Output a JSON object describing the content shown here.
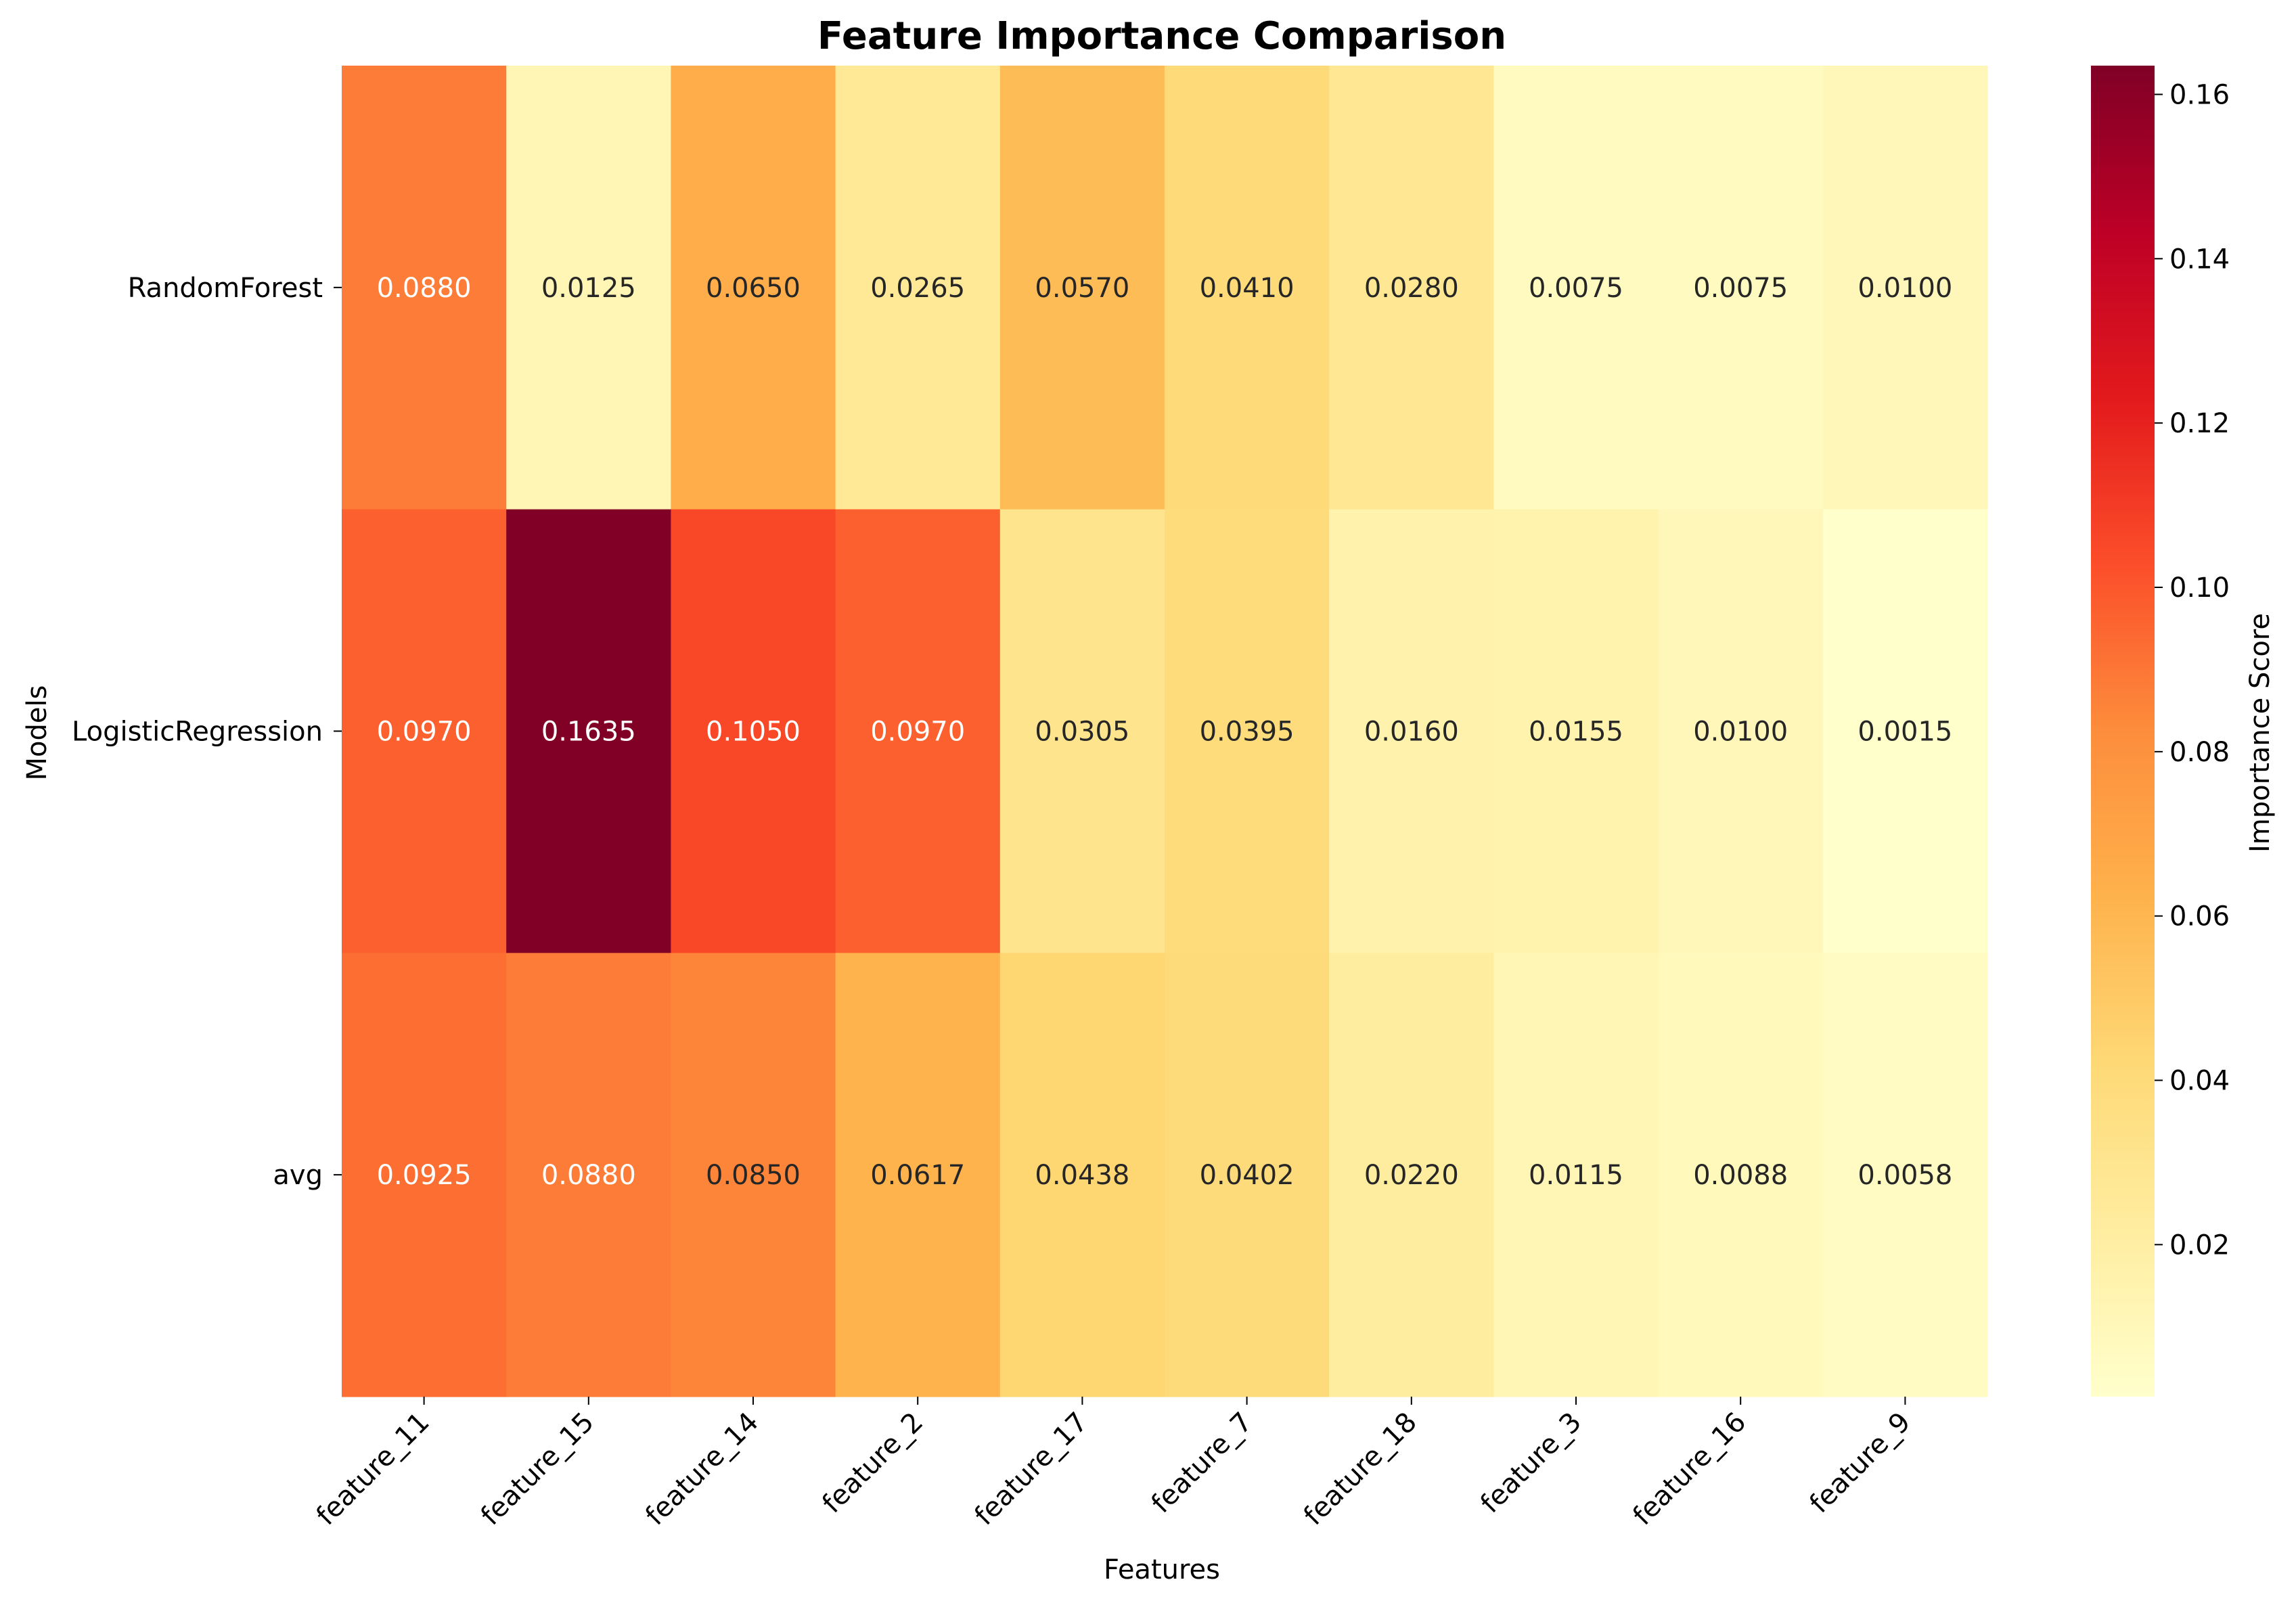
{
  "chart_data": {
    "type": "heatmap",
    "title": "Feature Importance Comparison",
    "xlabel": "Features",
    "ylabel": "Models",
    "x_categories": [
      "feature_11",
      "feature_15",
      "feature_14",
      "feature_2",
      "feature_17",
      "feature_7",
      "feature_18",
      "feature_3",
      "feature_16",
      "feature_9"
    ],
    "y_categories": [
      "RandomForest",
      "LogisticRegression",
      "avg"
    ],
    "values": [
      [
        0.088,
        0.0125,
        0.065,
        0.0265,
        0.057,
        0.041,
        0.028,
        0.0075,
        0.0075,
        0.01
      ],
      [
        0.097,
        0.1635,
        0.105,
        0.097,
        0.0305,
        0.0395,
        0.016,
        0.0155,
        0.01,
        0.0015
      ],
      [
        0.0925,
        0.088,
        0.085,
        0.0617,
        0.0438,
        0.0402,
        0.022,
        0.0115,
        0.0088,
        0.0058
      ]
    ],
    "cell_labels": [
      [
        "0.0880",
        "0.0125",
        "0.0650",
        "0.0265",
        "0.0570",
        "0.0410",
        "0.0280",
        "0.0075",
        "0.0075",
        "0.0100"
      ],
      [
        "0.0970",
        "0.1635",
        "0.1050",
        "0.0970",
        "0.0305",
        "0.0395",
        "0.0160",
        "0.0155",
        "0.0100",
        "0.0015"
      ],
      [
        "0.0925",
        "0.0880",
        "0.0850",
        "0.0617",
        "0.0438",
        "0.0402",
        "0.0220",
        "0.0115",
        "0.0088",
        "0.0058"
      ]
    ],
    "colormap": "YlOrRd",
    "value_range": [
      0.0015,
      0.1635
    ],
    "colorbar": {
      "label": "Importance Score",
      "ticks": [
        0.02,
        0.04,
        0.06,
        0.08,
        0.1,
        0.12,
        0.14,
        0.16
      ],
      "tick_labels": [
        "0.02",
        "0.04",
        "0.06",
        "0.08",
        "0.10",
        "0.12",
        "0.14",
        "0.16"
      ]
    },
    "colormap_stops": [
      "#ffffcc",
      "#ffeda0",
      "#fed976",
      "#feb24c",
      "#fd8d3c",
      "#fc4e2a",
      "#e31a1c",
      "#bd0026",
      "#800026"
    ],
    "grid": false
  }
}
